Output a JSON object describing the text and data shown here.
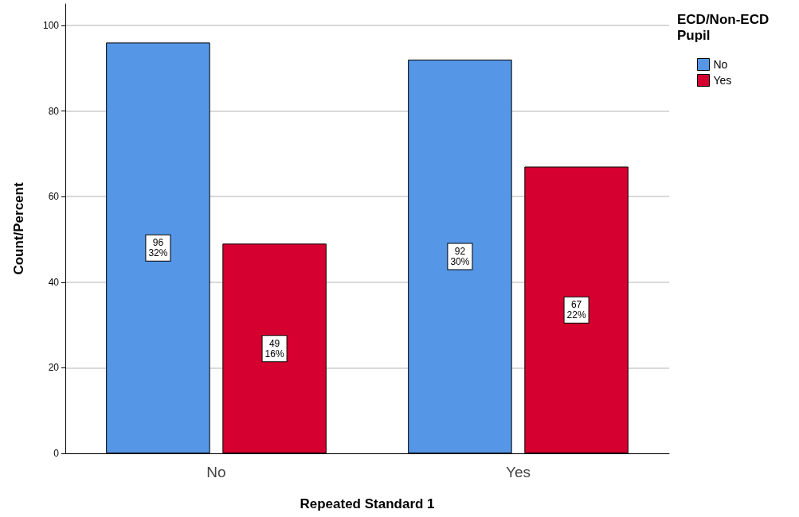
{
  "chart_data": {
    "type": "bar",
    "xlabel": "Repeated Standard 1",
    "ylabel": "Count/Percent",
    "legend_title": "ECD/Non-ECD Pupil",
    "categories": [
      "No",
      "Yes"
    ],
    "series": [
      {
        "name": "No",
        "color": "#5596e6",
        "values": [
          96,
          92
        ],
        "value_labels": [
          "96\n32%",
          "92\n30%"
        ]
      },
      {
        "name": "Yes",
        "color": "#d5002f",
        "values": [
          49,
          67
        ],
        "value_labels": [
          "49\n16%",
          "67\n22%"
        ]
      }
    ],
    "ylim": [
      0,
      105
    ],
    "yticks": [
      0,
      20,
      40,
      60,
      80,
      100
    ],
    "grid": "y",
    "legend": "top right"
  }
}
